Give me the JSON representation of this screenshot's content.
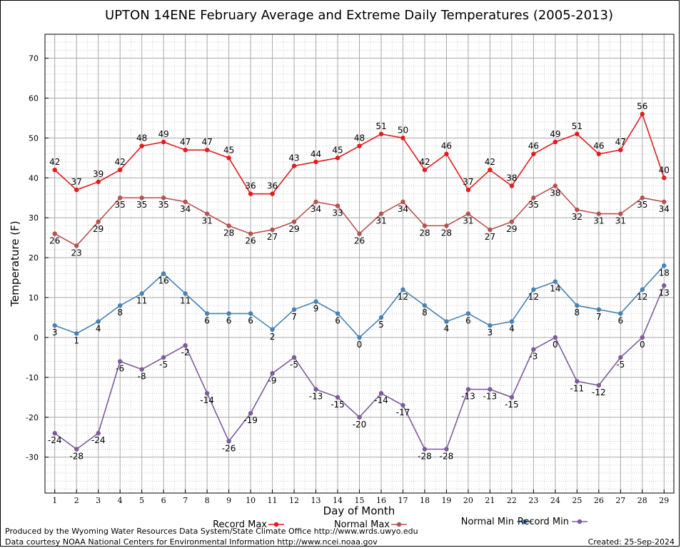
{
  "chart_data": {
    "type": "line",
    "title": "UPTON 14ENE February Average and Extreme Daily Temperatures (2005-2013)",
    "xlabel": "Day of Month",
    "ylabel": "Temperature (F)",
    "ylim": [
      -39,
      76
    ],
    "yticks": [
      -30,
      -20,
      -10,
      0,
      10,
      20,
      30,
      40,
      50,
      60,
      70
    ],
    "x": [
      1,
      2,
      3,
      4,
      5,
      6,
      7,
      8,
      9,
      10,
      11,
      12,
      13,
      14,
      15,
      16,
      17,
      18,
      19,
      20,
      21,
      22,
      23,
      24,
      25,
      26,
      27,
      28,
      29
    ],
    "grid": true,
    "legend_position": "bottom",
    "series": [
      {
        "name": "Record Max",
        "color": "#e41a1c",
        "values": [
          42,
          37,
          39,
          42,
          48,
          49,
          47,
          47,
          45,
          36,
          36,
          43,
          44,
          45,
          48,
          51,
          50,
          42,
          46,
          37,
          42,
          38,
          46,
          49,
          51,
          46,
          47,
          56,
          40
        ]
      },
      {
        "name": "Normal Max",
        "color": "#b5524e",
        "values": [
          26,
          23,
          29,
          35,
          35,
          35,
          34,
          31,
          28,
          26,
          27,
          29,
          34,
          33,
          26,
          31,
          34,
          28,
          28,
          31,
          27,
          29,
          35,
          38,
          32,
          31,
          31,
          35,
          34
        ]
      },
      {
        "name": "Normal Min",
        "color": "#4682b4",
        "values": [
          3,
          1,
          4,
          8,
          11,
          16,
          11,
          6,
          6,
          6,
          2,
          7,
          9,
          6,
          0,
          5,
          12,
          8,
          4,
          6,
          3,
          4,
          12,
          14,
          8,
          7,
          6,
          12,
          18
        ]
      },
      {
        "name": "Record Min",
        "color": "#7d5a9a",
        "values": [
          -24,
          -28,
          -24,
          -6,
          -8,
          -5,
          -2,
          -14,
          -26,
          -19,
          -9,
          -5,
          -13,
          -15,
          -20,
          -14,
          -17,
          -28,
          -28,
          -13,
          -13,
          -15,
          -3,
          0,
          -11,
          -12,
          -5,
          0,
          13
        ]
      }
    ]
  },
  "footer": {
    "produced_by": "Produced by the Wyoming Water Resources Data System/State Climate Office http://www.wrds.uwyo.edu",
    "data_courtesy": "Data courtesy NOAA National Centers for Environmental Information http://www.ncei.noaa.gov",
    "created": "Created: 25-Sep-2024"
  }
}
